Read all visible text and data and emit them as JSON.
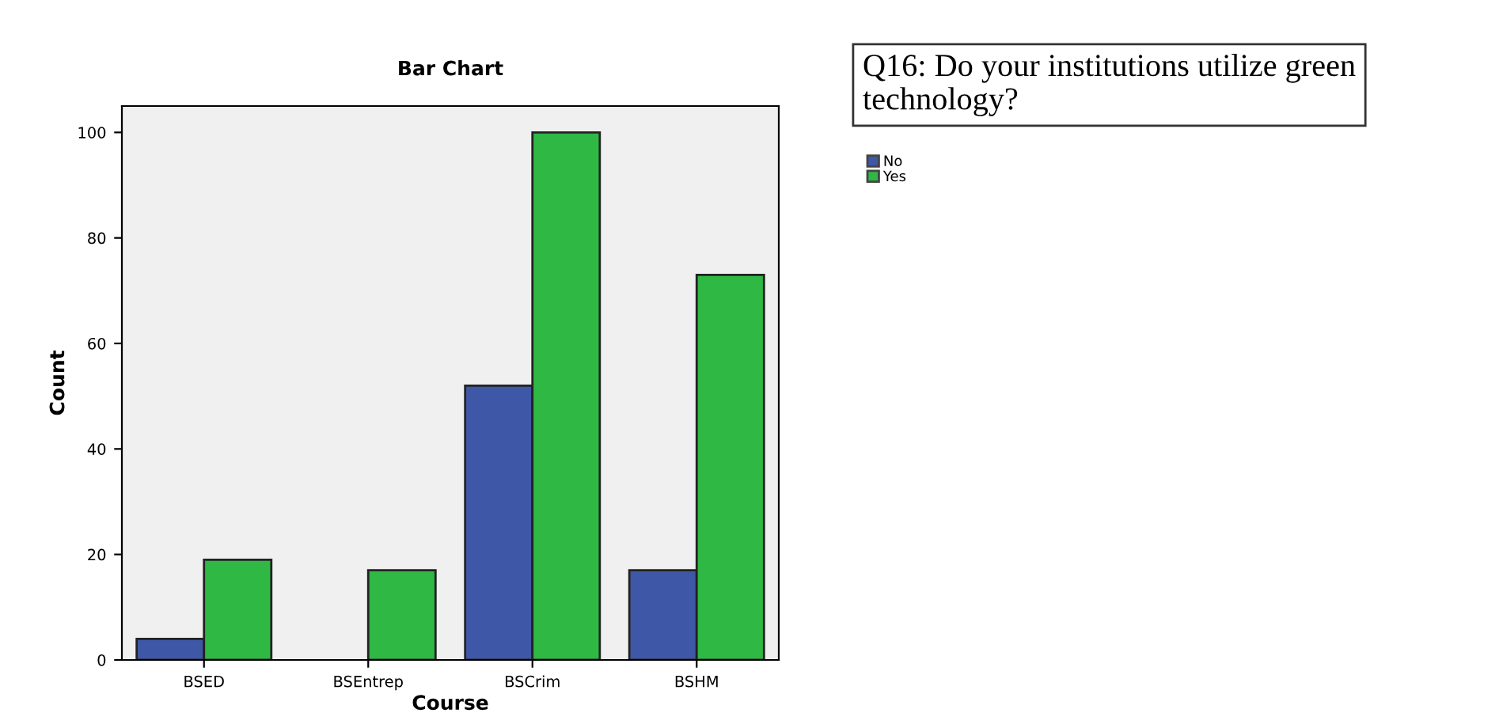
{
  "chart_data": {
    "type": "bar",
    "title": "Bar Chart",
    "xlabel": "Course",
    "ylabel": "Count",
    "legend_title": "Q16: Do your institutions utilize green technology?",
    "categories": [
      "BSED",
      "BSEntrep",
      "BSCrim",
      "BSHM"
    ],
    "series": [
      {
        "name": "No",
        "color": "#3f57a7",
        "values": [
          4,
          null,
          52,
          17
        ]
      },
      {
        "name": "Yes",
        "color": "#2fb844",
        "values": [
          19,
          17,
          100,
          73
        ]
      }
    ],
    "ylim": [
      0,
      105
    ],
    "yticks": [
      0,
      20,
      40,
      60,
      80,
      100
    ],
    "grid": false,
    "legend": "top right"
  }
}
